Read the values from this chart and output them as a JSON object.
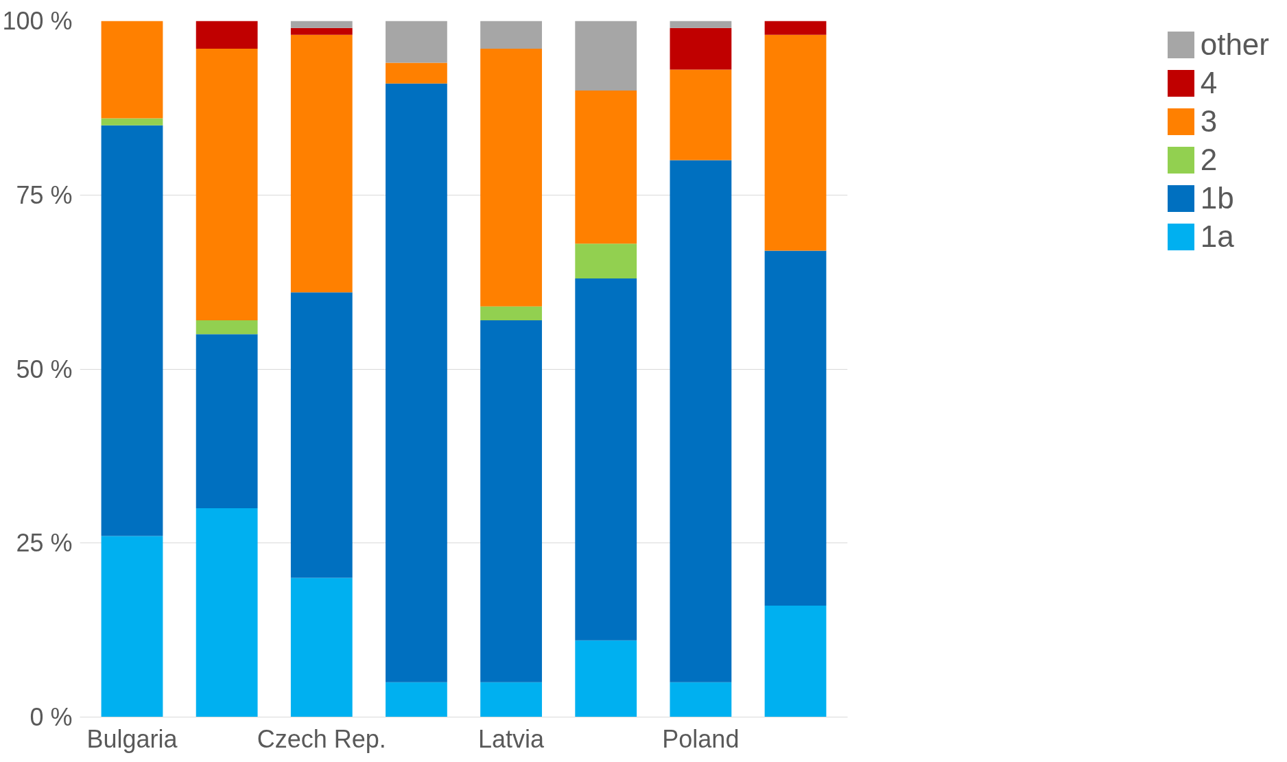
{
  "chart_data": {
    "type": "bar",
    "stacked": true,
    "categories": [
      "Bulgaria",
      null,
      "Czech Rep.",
      null,
      "Latvia",
      null,
      "Poland",
      null
    ],
    "series": [
      {
        "name": "1a",
        "color": "#00b0f0",
        "values": [
          26,
          30,
          20,
          5,
          5,
          11,
          5,
          16
        ]
      },
      {
        "name": "1b",
        "color": "#0070c0",
        "values": [
          59,
          25,
          41,
          86,
          52,
          52,
          75,
          51
        ]
      },
      {
        "name": "2",
        "color": "#92d050",
        "values": [
          1,
          2,
          0,
          0,
          2,
          5,
          0,
          0
        ]
      },
      {
        "name": "3",
        "color": "#ff8000",
        "values": [
          14,
          39,
          37,
          3,
          37,
          22,
          13,
          31
        ]
      },
      {
        "name": "4",
        "color": "#c00000",
        "values": [
          0,
          4,
          1,
          0,
          0,
          0,
          6,
          2
        ]
      },
      {
        "name": "other",
        "color": "#a6a6a6",
        "values": [
          0,
          0,
          1,
          6,
          4,
          10,
          1,
          0
        ]
      }
    ],
    "ylim": [
      0,
      100
    ],
    "yticks": [
      {
        "value": 0,
        "label": "0 %"
      },
      {
        "value": 25,
        "label": "25 %"
      },
      {
        "value": 50,
        "label": "50 %"
      },
      {
        "value": 75,
        "label": "75 %"
      },
      {
        "value": 100,
        "label": "100 %"
      }
    ],
    "grid": "y",
    "legend": "right"
  }
}
